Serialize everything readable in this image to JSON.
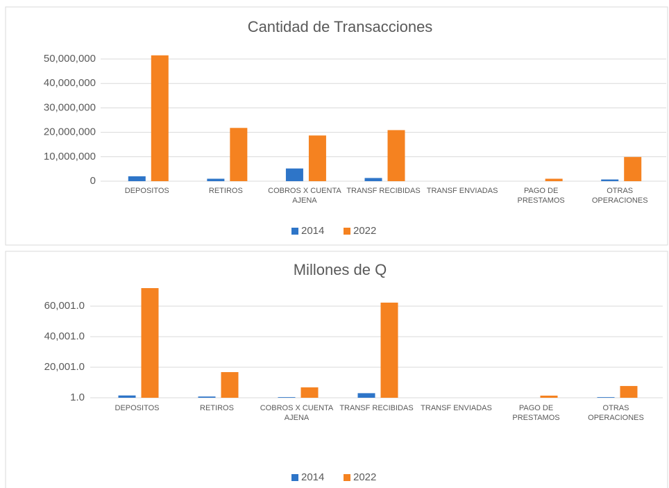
{
  "chart_data": [
    {
      "type": "bar",
      "title": "Cantidad de Transacciones",
      "categories": [
        "DEPOSITOS",
        "RETIROS",
        "COBROS X CUENTA AJENA",
        "TRANSF RECIBIDAS",
        "TRANSF ENVIADAS",
        "PAGO DE PRESTAMOS",
        "OTRAS OPERACIONES"
      ],
      "series": [
        {
          "name": "2014",
          "color": "#2e75c8",
          "values": [
            2000000,
            1000000,
            5200000,
            1300000,
            0,
            0,
            700000
          ]
        },
        {
          "name": "2022",
          "color": "#f58220",
          "values": [
            51500000,
            21800000,
            18700000,
            20900000,
            0,
            1000000,
            9900000
          ]
        }
      ],
      "ylim": [
        0,
        55000000
      ],
      "yticks": [
        0,
        {
          "value": 10000000,
          "label": "10,000,000"
        },
        {
          "value": 20000000,
          "label": "20,000,000"
        },
        {
          "value": 30000000,
          "label": "30,000,000"
        },
        {
          "value": 40000000,
          "label": "40,000,000"
        },
        {
          "value": 50000000,
          "label": "50,000,000"
        }
      ],
      "grid": true,
      "legend": "bottom"
    },
    {
      "type": "bar",
      "title": "Millones de Q",
      "categories": [
        "DEPOSITOS",
        "RETIROS",
        "COBROS X CUENTA AJENA",
        "TRANSF RECIBIDAS",
        "TRANSF ENVIADAS",
        "PAGO DE PRESTAMOS",
        "OTRAS OPERACIONES"
      ],
      "series": [
        {
          "name": "2014",
          "color": "#2e75c8",
          "values": [
            1500,
            800,
            400,
            3000,
            0,
            0,
            400
          ]
        },
        {
          "name": "2022",
          "color": "#f58220",
          "values": [
            71800,
            16800,
            6800,
            62300,
            0,
            1400,
            7700
          ]
        }
      ],
      "ylim": [
        1,
        75001
      ],
      "yticks": [
        {
          "value": 1,
          "label": "1.0"
        },
        {
          "value": 20001,
          "label": "20,001.0"
        },
        {
          "value": 40001,
          "label": "40,001.0"
        },
        {
          "value": 60001,
          "label": "60,001.0"
        }
      ],
      "grid": true,
      "legend": "bottom"
    }
  ]
}
